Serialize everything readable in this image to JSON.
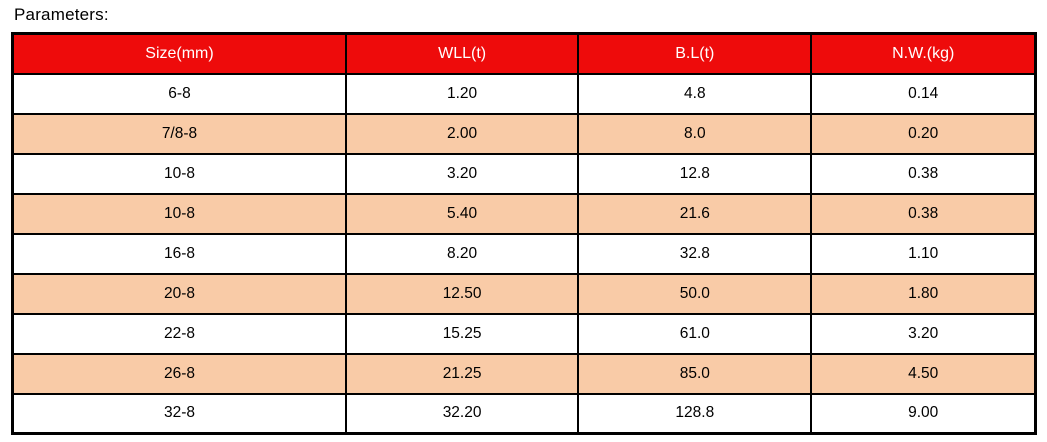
{
  "page_title": "Parameters:",
  "colors": {
    "header_bg": "#ee0b0b",
    "header_text": "#ffffff",
    "row_bg": "#ffffff",
    "row_alt_bg": "#f9cba7",
    "border": "#000000",
    "text": "#000000"
  },
  "chart_data": {
    "type": "table",
    "title": "Parameters:",
    "columns": [
      "Size(mm)",
      "WLL(t)",
      "B.L(t)",
      "N.W.(kg)"
    ],
    "rows": [
      [
        "6-8",
        "1.20",
        "4.8",
        "0.14"
      ],
      [
        "7/8-8",
        "2.00",
        "8.0",
        "0.20"
      ],
      [
        "10-8",
        "3.20",
        "12.8",
        "0.38"
      ],
      [
        "10-8",
        "5.40",
        "21.6",
        "0.38"
      ],
      [
        "16-8",
        "8.20",
        "32.8",
        "1.10"
      ],
      [
        "20-8",
        "12.50",
        "50.0",
        "1.80"
      ],
      [
        "22-8",
        "15.25",
        "61.0",
        "3.20"
      ],
      [
        "26-8",
        "21.25",
        "85.0",
        "4.50"
      ],
      [
        "32-8",
        "32.20",
        "128.8",
        "9.00"
      ]
    ]
  }
}
